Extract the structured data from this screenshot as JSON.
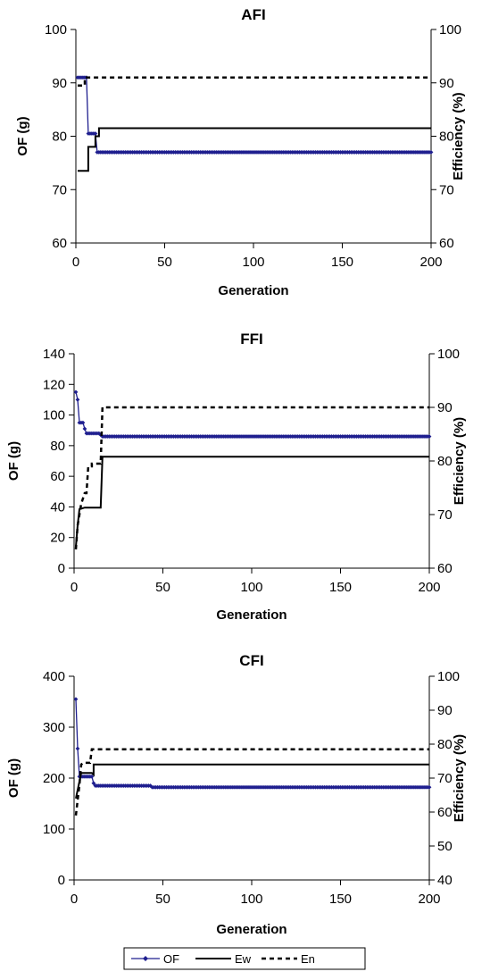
{
  "legend": {
    "items": [
      {
        "label": "OF",
        "style": "marker-line",
        "color": "#1f1f8f"
      },
      {
        "label": "Ew",
        "style": "solid",
        "color": "#000000"
      },
      {
        "label": "En",
        "style": "dotted",
        "color": "#000000"
      }
    ]
  },
  "chart_data": [
    {
      "type": "line",
      "title": "AFI",
      "xlabel": "Generation",
      "ylabel": "OF (g)",
      "y2label": "Efficiency (%)",
      "xlim": [
        0,
        200
      ],
      "ylim": [
        60,
        100
      ],
      "y2lim": [
        60,
        100
      ],
      "xticks": [
        0,
        50,
        100,
        150,
        200
      ],
      "yticks": [
        60,
        70,
        80,
        90,
        100
      ],
      "y2ticks": [
        60,
        70,
        80,
        90,
        100
      ],
      "series": [
        {
          "name": "OF",
          "axis": "left",
          "style": "marker-line",
          "color": "#1f1f8f",
          "x": [
            1,
            6,
            7,
            8,
            11,
            12,
            13,
            200
          ],
          "y": [
            91,
            91,
            80.5,
            80.5,
            80.5,
            77,
            77,
            77
          ]
        },
        {
          "name": "Ew",
          "axis": "right",
          "style": "solid",
          "color": "#000000",
          "x": [
            1,
            7,
            7,
            11,
            11,
            13,
            13,
            200
          ],
          "y": [
            73.5,
            73.5,
            78,
            78,
            80,
            80,
            81.5,
            81.5
          ]
        },
        {
          "name": "En",
          "axis": "right",
          "style": "dotted",
          "color": "#000000",
          "x": [
            1,
            5,
            5,
            200
          ],
          "y": [
            89.5,
            89.5,
            91,
            91
          ]
        }
      ]
    },
    {
      "type": "line",
      "title": "FFI",
      "xlabel": "Generation",
      "ylabel": "OF (g)",
      "y2label": "Efficiency (%)",
      "xlim": [
        0,
        200
      ],
      "ylim": [
        0,
        140
      ],
      "y2lim": [
        60,
        100
      ],
      "xticks": [
        0,
        50,
        100,
        150,
        200
      ],
      "yticks": [
        0,
        20,
        40,
        60,
        80,
        100,
        120,
        140
      ],
      "y2ticks": [
        60,
        70,
        80,
        90,
        100
      ],
      "series": [
        {
          "name": "OF",
          "axis": "left",
          "style": "marker-line",
          "color": "#1f1f8f",
          "x": [
            1,
            2,
            3,
            4,
            5,
            6,
            7,
            8,
            10,
            13,
            15,
            16,
            200
          ],
          "y": [
            115,
            110,
            95,
            95,
            95,
            91,
            88,
            88,
            88,
            88,
            87,
            86,
            86
          ]
        },
        {
          "name": "Ew",
          "axis": "right",
          "style": "solid",
          "color": "#000000",
          "x": [
            1,
            2,
            3,
            6,
            7,
            10,
            15,
            16,
            200
          ],
          "y": [
            64,
            68,
            71,
            71.3,
            71.3,
            71.3,
            71.3,
            80.8,
            80.8
          ]
        },
        {
          "name": "En",
          "axis": "right",
          "style": "dotted",
          "color": "#000000",
          "x": [
            1,
            2,
            4,
            6,
            7,
            8,
            10,
            10,
            15,
            16,
            200
          ],
          "y": [
            63.5,
            68,
            72,
            74,
            74,
            79,
            79,
            79.5,
            79.5,
            90,
            90
          ]
        }
      ]
    },
    {
      "type": "line",
      "title": "CFI",
      "xlabel": "Generation",
      "ylabel": "OF (g)",
      "y2label": "Efficiency (%)",
      "xlim": [
        0,
        200
      ],
      "ylim": [
        0,
        400
      ],
      "y2lim": [
        40,
        100
      ],
      "xticks": [
        0,
        50,
        100,
        150,
        200
      ],
      "yticks": [
        0,
        100,
        200,
        300,
        400
      ],
      "y2ticks": [
        40,
        50,
        60,
        70,
        80,
        90,
        100
      ],
      "series": [
        {
          "name": "OF",
          "axis": "left",
          "style": "marker-line",
          "color": "#1f1f8f",
          "x": [
            1,
            2,
            3,
            4,
            10,
            11,
            12,
            43,
            44,
            200
          ],
          "y": [
            355,
            258,
            203,
            203,
            203,
            190,
            185,
            185,
            182,
            182
          ]
        },
        {
          "name": "Ew",
          "axis": "right",
          "style": "solid",
          "color": "#000000",
          "x": [
            1,
            3,
            4,
            10,
            11,
            11,
            200
          ],
          "y": [
            64,
            69,
            71.5,
            71.5,
            71,
            74,
            74
          ]
        },
        {
          "name": "En",
          "axis": "right",
          "style": "dotted",
          "color": "#000000",
          "x": [
            1,
            2,
            3,
            4,
            5,
            9,
            10,
            200
          ],
          "y": [
            59,
            63.5,
            68,
            74,
            74.5,
            74.5,
            78.5,
            78.5
          ]
        }
      ]
    }
  ]
}
